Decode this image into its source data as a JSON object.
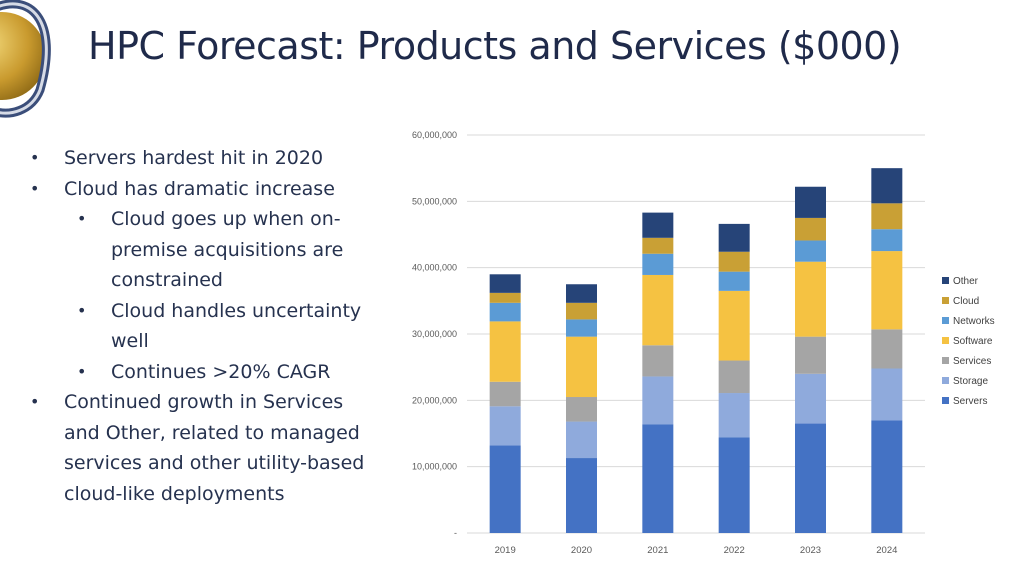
{
  "slide": {
    "title": "HPC Forecast: Products and Services ($000)",
    "bullets": [
      {
        "level": 1,
        "text": "Servers hardest hit in 2020"
      },
      {
        "level": 1,
        "text": "Cloud has dramatic increase"
      },
      {
        "level": 2,
        "text": "Cloud goes up when on-premise acquisitions are constrained"
      },
      {
        "level": 2,
        "text": "Cloud handles uncertainty well"
      },
      {
        "level": 2,
        "text": "Continues >20% CAGR"
      },
      {
        "level": 1,
        "text": "Continued growth in Services and Other, related to managed services and other utility-based cloud-like deployments"
      }
    ]
  },
  "colors": {
    "Servers": "#4472c4",
    "Storage": "#8faadc",
    "Services": "#a5a5a5",
    "Software": "#f5c242",
    "Networks": "#5b9bd5",
    "Cloud": "#c9a035",
    "Other": "#264478"
  },
  "chart_data": {
    "type": "bar",
    "stacked": true,
    "categories": [
      "2019",
      "2020",
      "2021",
      "2022",
      "2023",
      "2024"
    ],
    "series": [
      {
        "name": "Servers",
        "values": [
          13200000,
          11300000,
          16400000,
          14400000,
          16500000,
          17000000
        ]
      },
      {
        "name": "Storage",
        "values": [
          5900000,
          5500000,
          7200000,
          6700000,
          7500000,
          7800000
        ]
      },
      {
        "name": "Services",
        "values": [
          3700000,
          3700000,
          4700000,
          4900000,
          5600000,
          5900000
        ]
      },
      {
        "name": "Software",
        "values": [
          9100000,
          9100000,
          10600000,
          10500000,
          11300000,
          11800000
        ]
      },
      {
        "name": "Networks",
        "values": [
          2800000,
          2600000,
          3200000,
          2900000,
          3200000,
          3300000
        ]
      },
      {
        "name": "Cloud",
        "values": [
          1500000,
          2500000,
          2400000,
          3000000,
          3400000,
          3900000
        ]
      },
      {
        "name": "Other",
        "values": [
          2800000,
          2800000,
          3800000,
          4200000,
          4700000,
          5300000
        ]
      }
    ],
    "yticks": [
      "-",
      "10,000,000",
      "20,000,000",
      "30,000,000",
      "40,000,000",
      "50,000,000",
      "60,000,000"
    ],
    "ylim": [
      0,
      60000000
    ],
    "grid": true,
    "legend_position": "right",
    "legend_order": [
      "Other",
      "Cloud",
      "Networks",
      "Software",
      "Services",
      "Storage",
      "Servers"
    ]
  }
}
